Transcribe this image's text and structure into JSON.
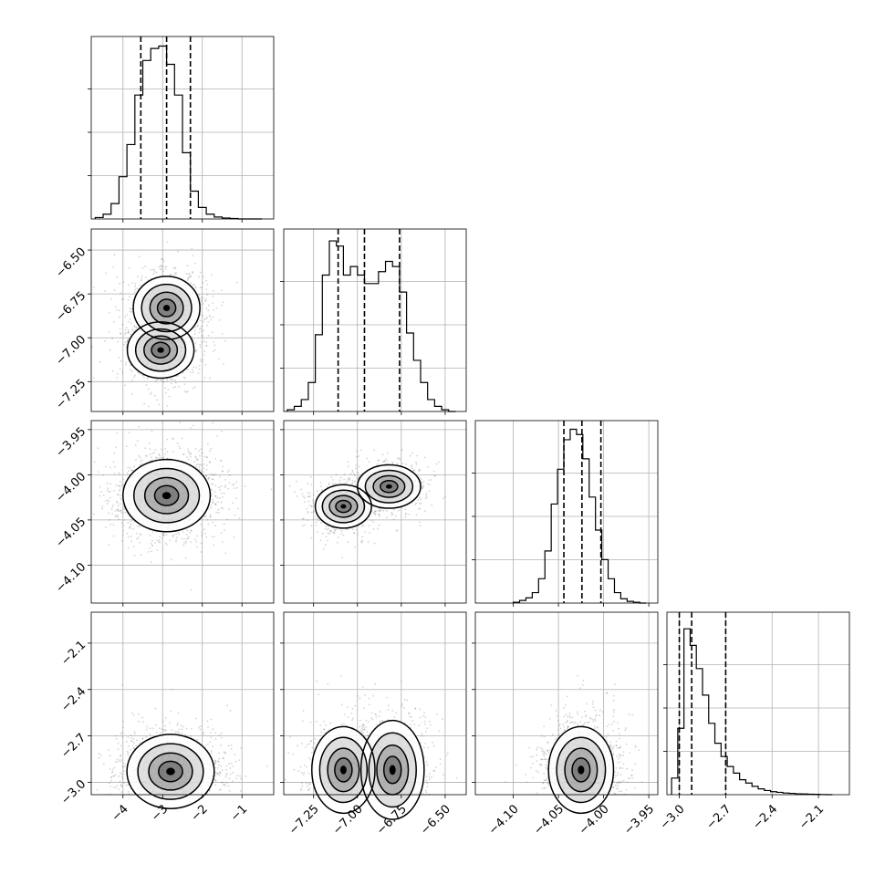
{
  "chart_data": {
    "type": "corner",
    "grid": true,
    "params": [
      {
        "range": [
          -4.8,
          -0.2
        ],
        "ticks": [
          -4,
          -3,
          -2,
          -1
        ],
        "tick_labels": [
          "−4",
          "−3",
          "−2",
          "−1"
        ],
        "quantiles": [
          -3.55,
          -2.9,
          -2.3
        ],
        "hist_edges": [
          -4.7,
          -4.5,
          -4.3,
          -4.1,
          -3.9,
          -3.7,
          -3.5,
          -3.3,
          -3.1,
          -2.9,
          -2.7,
          -2.5,
          -2.3,
          -2.1,
          -1.9,
          -1.7,
          -1.5,
          -1.3,
          -1.1,
          -0.9,
          -0.7,
          -0.5
        ],
        "hist_counts": [
          3,
          10,
          32,
          88,
          155,
          258,
          330,
          355,
          360,
          322,
          258,
          138,
          58,
          24,
          10,
          4,
          2,
          1,
          0,
          0,
          0
        ],
        "hist_ylim": [
          0,
          380
        ]
      },
      {
        "range": [
          -7.42,
          -6.38
        ],
        "ticks": [
          -7.25,
          -7.0,
          -6.75,
          -6.5
        ],
        "tick_labels": [
          "−7.25",
          "−7.00",
          "−6.75",
          "−6.50"
        ],
        "quantiles": [
          -7.11,
          -6.96,
          -6.76
        ],
        "hist_edges": [
          -7.4,
          -7.36,
          -7.32,
          -7.28,
          -7.24,
          -7.2,
          -7.16,
          -7.12,
          -7.08,
          -7.04,
          -7.0,
          -6.96,
          -6.92,
          -6.88,
          -6.84,
          -6.8,
          -6.76,
          -6.72,
          -6.68,
          -6.64,
          -6.6,
          -6.56,
          -6.52,
          -6.48,
          -6.44
        ],
        "hist_counts": [
          0.01,
          0.03,
          0.07,
          0.17,
          0.45,
          0.8,
          1.0,
          0.97,
          0.8,
          0.85,
          0.8,
          0.75,
          0.75,
          0.82,
          0.88,
          0.85,
          0.7,
          0.46,
          0.3,
          0.17,
          0.07,
          0.03,
          0.01,
          0.0
        ],
        "hist_ylim": [
          0,
          1.07
        ]
      },
      {
        "range": [
          -4.142,
          -3.94
        ],
        "ticks": [
          -4.1,
          -4.05,
          -4.0,
          -3.95
        ],
        "tick_labels": [
          "−4.10",
          "−4.05",
          "−4.00",
          "−3.95"
        ],
        "quantiles": [
          -4.044,
          -4.024,
          -4.003
        ],
        "hist_edges": [
          -4.1,
          -4.093,
          -4.086,
          -4.079,
          -4.072,
          -4.065,
          -4.058,
          -4.051,
          -4.044,
          -4.037,
          -4.03,
          -4.023,
          -4.016,
          -4.009,
          -4.002,
          -3.995,
          -3.988,
          -3.981,
          -3.974,
          -3.967,
          -3.96,
          -3.953
        ],
        "hist_counts": [
          0.005,
          0.015,
          0.03,
          0.06,
          0.14,
          0.3,
          0.57,
          0.77,
          0.94,
          1.0,
          0.97,
          0.83,
          0.61,
          0.42,
          0.25,
          0.14,
          0.06,
          0.025,
          0.01,
          0.005,
          0.0
        ],
        "hist_ylim": [
          0,
          1.05
        ]
      },
      {
        "range": [
          -3.08,
          -1.9
        ],
        "ticks": [
          -3.0,
          -2.7,
          -2.4,
          -2.1
        ],
        "tick_labels": [
          "−3.0",
          "−2.7",
          "−2.4",
          "−2.1"
        ],
        "quantiles": [
          -3.0,
          -2.92,
          -2.7
        ],
        "hist_edges": [
          -3.05,
          -3.01,
          -2.97,
          -2.93,
          -2.89,
          -2.85,
          -2.81,
          -2.77,
          -2.73,
          -2.69,
          -2.65,
          -2.61,
          -2.57,
          -2.53,
          -2.49,
          -2.45,
          -2.41,
          -2.37,
          -2.33,
          -2.29,
          -2.25,
          -2.21,
          -2.17,
          -2.13,
          -2.09,
          -2.05,
          -2.01
        ],
        "hist_counts": [
          0.1,
          0.4,
          1.0,
          0.9,
          0.76,
          0.6,
          0.43,
          0.31,
          0.23,
          0.17,
          0.13,
          0.09,
          0.07,
          0.05,
          0.035,
          0.025,
          0.018,
          0.014,
          0.01,
          0.008,
          0.005,
          0.004,
          0.003,
          0.002,
          0.001,
          0.0
        ],
        "hist_ylim": [
          0,
          1.1
        ]
      }
    ],
    "pairs": [
      {
        "row": 1,
        "col": 0,
        "centers": [
          [
            -2.9,
            -6.83
          ],
          [
            -3.05,
            -7.07
          ]
        ],
        "spread": [
          [
            0.42,
            0.09
          ],
          [
            0.42,
            0.08
          ]
        ],
        "n": 1400,
        "color": "#666666"
      },
      {
        "row": 2,
        "col": 0,
        "centers": [
          [
            -2.9,
            -4.023
          ]
        ],
        "spread": [
          [
            0.55,
            0.02
          ]
        ],
        "n": 1400,
        "color": "#666666"
      },
      {
        "row": 2,
        "col": 1,
        "centers": [
          [
            -7.08,
            -4.035
          ],
          [
            -6.82,
            -4.013
          ]
        ],
        "spread": [
          [
            0.08,
            0.012
          ],
          [
            0.09,
            0.012
          ]
        ],
        "n": 1400,
        "color": "#666666"
      },
      {
        "row": 3,
        "col": 0,
        "centers": [
          [
            -2.8,
            -2.93
          ]
        ],
        "spread": [
          [
            0.55,
            0.12
          ]
        ],
        "n": 1400,
        "color": "#666666"
      },
      {
        "row": 3,
        "col": 1,
        "centers": [
          [
            -7.08,
            -2.92
          ],
          [
            -6.8,
            -2.92
          ]
        ],
        "spread": [
          [
            0.09,
            0.14
          ],
          [
            0.09,
            0.16
          ]
        ],
        "n": 1400,
        "color": "#666666"
      },
      {
        "row": 3,
        "col": 2,
        "centers": [
          [
            -4.025,
            -2.92
          ]
        ],
        "spread": [
          [
            0.018,
            0.14
          ]
        ],
        "n": 1400,
        "color": "#666666"
      }
    ]
  }
}
